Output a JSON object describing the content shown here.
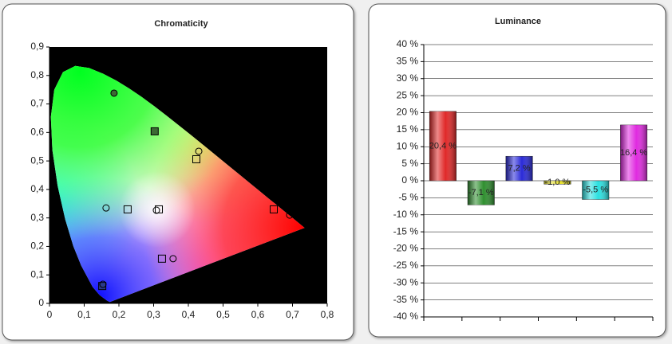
{
  "chart_data": [
    {
      "type": "scatter",
      "title": "Chromaticity",
      "xlim": [
        0,
        0.8
      ],
      "xticks": [
        0,
        {
          "value": 0.1,
          "label": "0,1"
        },
        {
          "value": 0.2,
          "label": "0,2"
        },
        {
          "value": 0.3,
          "label": "0,3"
        },
        {
          "value": 0.4,
          "label": "0,4"
        },
        {
          "value": 0.5,
          "label": "0,5"
        },
        {
          "value": 0.6,
          "label": "0,6"
        },
        {
          "value": 0.7,
          "label": "0,7"
        },
        {
          "value": 0.8,
          "label": "0,8"
        }
      ],
      "ylim": [
        0,
        0.9
      ],
      "yticks": [
        0,
        {
          "value": 0.1,
          "label": "0,1"
        },
        {
          "value": 0.2,
          "label": "0,2"
        },
        {
          "value": 0.3,
          "label": "0,3"
        },
        {
          "value": 0.4,
          "label": "0,4"
        },
        {
          "value": 0.5,
          "label": "0,5"
        },
        {
          "value": 0.6,
          "label": "0,6"
        },
        {
          "value": 0.7,
          "label": "0,7"
        },
        {
          "value": 0.8,
          "label": "0,8"
        },
        {
          "value": 0.9,
          "label": "0,9"
        }
      ],
      "grid": false,
      "series": [
        {
          "marker": "square",
          "color": "#000000",
          "x": [
            0.303,
            0.423,
            0.225,
            0.315,
            0.646,
            0.324,
            0.152
          ],
          "values": [
            0.604,
            0.506,
            0.33,
            0.33,
            0.33,
            0.157,
            0.061
          ],
          "fills": [
            "#3c6a34",
            "none",
            "none",
            "none",
            "none",
            "none",
            "#2a3a8a"
          ]
        },
        {
          "marker": "circle",
          "color": "#000000",
          "x": [
            0.186,
            0.43,
            0.163,
            0.308,
            0.692,
            0.356,
            0.154
          ],
          "values": [
            0.738,
            0.534,
            0.335,
            0.327,
            0.31,
            0.157,
            0.067
          ],
          "fills": [
            "#3c6a34",
            "none",
            "none",
            "none",
            "none",
            "none",
            "none"
          ]
        }
      ]
    },
    {
      "type": "bar",
      "title": "Luminance",
      "categories": [
        null,
        null,
        null,
        null,
        null,
        null
      ],
      "values": [
        20.4,
        -7.1,
        7.2,
        -1.0,
        -5.5,
        16.4
      ],
      "value_labels": [
        "20,4 %",
        "-7,1 %",
        "7,2 %",
        "-1,0 %",
        "-5,5 %",
        "16,4 %"
      ],
      "colors": [
        "#e02828",
        "#2f8f2f",
        "#2a2ad8",
        "#e6e02a",
        "#2ae0e0",
        "#e02ae0"
      ],
      "ylim": [
        -40,
        40
      ],
      "yticks": [
        {
          "value": 40,
          "label": "40 %"
        },
        {
          "value": 35,
          "label": "35 %"
        },
        {
          "value": 30,
          "label": "30 %"
        },
        {
          "value": 25,
          "label": "25 %"
        },
        {
          "value": 20,
          "label": "20 %"
        },
        {
          "value": 15,
          "label": "15 %"
        },
        {
          "value": 10,
          "label": "10 %"
        },
        {
          "value": 5,
          "label": "5 %"
        },
        {
          "value": 0,
          "label": "0 %"
        },
        {
          "value": -5,
          "label": "-5 %"
        },
        {
          "value": -10,
          "label": "-10 %"
        },
        {
          "value": -15,
          "label": "-15 %"
        },
        {
          "value": -20,
          "label": "-20 %"
        },
        {
          "value": -25,
          "label": "-25 %"
        },
        {
          "value": -30,
          "label": "-30 %"
        },
        {
          "value": -35,
          "label": "-35 %"
        },
        {
          "value": -40,
          "label": "-40 %"
        }
      ],
      "grid": true
    }
  ]
}
